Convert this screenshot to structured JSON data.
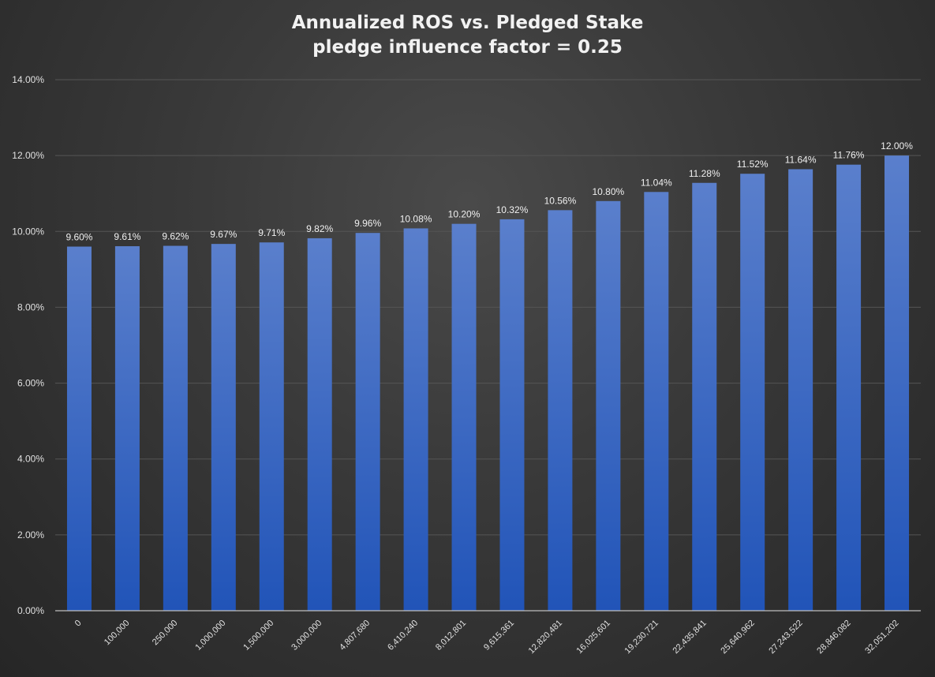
{
  "chart_data": {
    "type": "bar",
    "title": "Annualized ROS vs. Pledged Stake",
    "subtitle": "pledge influence factor = 0.25",
    "xlabel": "",
    "ylabel": "",
    "categories": [
      "0",
      "100,000",
      "250,000",
      "1,000,000",
      "1,500,000",
      "3,000,000",
      "4,807,680",
      "6,410,240",
      "8,012,801",
      "9,615,361",
      "12,820,481",
      "16,025,601",
      "19,230,721",
      "22,435,841",
      "25,640,962",
      "27,243,522",
      "28,846,082",
      "32,051,202"
    ],
    "values": [
      9.6,
      9.61,
      9.62,
      9.67,
      9.71,
      9.82,
      9.96,
      10.08,
      10.2,
      10.32,
      10.56,
      10.8,
      11.04,
      11.28,
      11.52,
      11.64,
      11.76,
      12.0
    ],
    "data_labels": [
      "9.60%",
      "9.61%",
      "9.62%",
      "9.67%",
      "9.71%",
      "9.82%",
      "9.96%",
      "10.08%",
      "10.20%",
      "10.32%",
      "10.56%",
      "10.80%",
      "11.04%",
      "11.28%",
      "11.52%",
      "11.64%",
      "11.76%",
      "12.00%"
    ],
    "ylim": [
      0,
      14
    ],
    "y_ticks": [
      0,
      2,
      4,
      6,
      8,
      10,
      12,
      14
    ],
    "y_tick_labels": [
      "0.00%",
      "2.00%",
      "4.00%",
      "6.00%",
      "8.00%",
      "10.00%",
      "12.00%",
      "14.00%"
    ],
    "grid": true,
    "legend": "none",
    "colors": {
      "bar_top": "#5a7fcc",
      "bar_bottom": "#2154b8",
      "gridline": "#555555",
      "axis": "#bfbfbf",
      "text": "#e0e0e0"
    }
  }
}
